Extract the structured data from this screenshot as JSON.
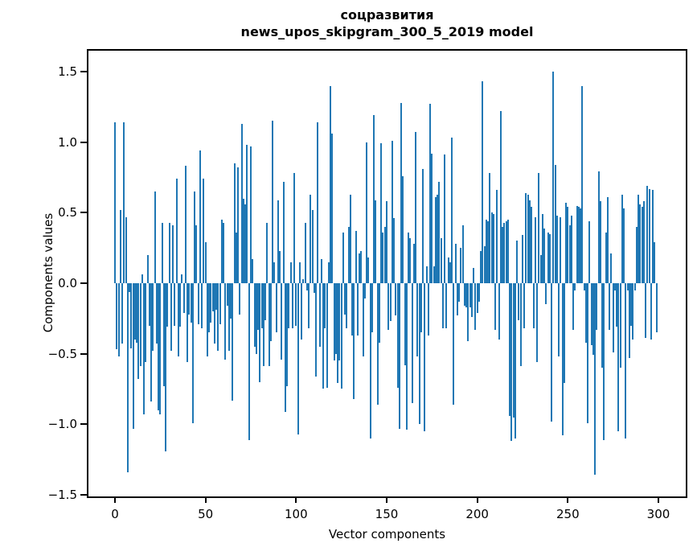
{
  "chart_data": {
    "type": "bar",
    "title_line1": "соцразвития",
    "title_line2": "news_upos_skipgram_300_5_2019 model",
    "xlabel": "Vector components",
    "ylabel": "Components values",
    "x_ticks": [
      0,
      50,
      100,
      150,
      200,
      250,
      300
    ],
    "x_tick_labels": [
      "0",
      "50",
      "100",
      "150",
      "200",
      "250",
      "300"
    ],
    "y_ticks": [
      1.5,
      1.0,
      0.5,
      0.0,
      -0.5,
      -1.0,
      -1.5
    ],
    "y_tick_labels": [
      "1.5",
      "1.0",
      "0.5",
      "0.0",
      "−0.5",
      "−1.0",
      "−1.5"
    ],
    "xlim": [
      -15.7,
      315.7
    ],
    "ylim": [
      -1.51,
      1.65
    ],
    "grid": false,
    "legend": false,
    "bar_color": "#1f77b4",
    "n_components": 300,
    "x_start_index": 0,
    "values": [
      1.14,
      -0.47,
      -0.52,
      0.52,
      -0.43,
      1.14,
      0.47,
      -1.34,
      -0.06,
      -0.46,
      -1.03,
      -0.4,
      -0.42,
      -0.68,
      -0.59,
      0.06,
      -0.93,
      -0.56,
      0.2,
      -0.3,
      -0.84,
      -0.48,
      0.65,
      -0.43,
      -0.9,
      -0.93,
      0.43,
      -0.73,
      -1.19,
      -0.31,
      0.43,
      -0.48,
      0.41,
      -0.3,
      0.74,
      -0.52,
      -0.31,
      0.06,
      -0.21,
      0.83,
      -0.56,
      -0.22,
      -0.28,
      -0.99,
      0.65,
      0.41,
      -0.29,
      0.94,
      -0.32,
      0.74,
      0.29,
      -0.52,
      -0.35,
      -0.28,
      -0.2,
      -0.43,
      -0.19,
      -0.48,
      -0.29,
      0.45,
      0.43,
      -0.54,
      -0.16,
      -0.48,
      -0.25,
      -0.83,
      0.85,
      0.36,
      0.82,
      -0.22,
      1.13,
      0.6,
      0.56,
      0.98,
      -1.11,
      0.97,
      0.17,
      -0.45,
      -0.5,
      -0.33,
      -0.7,
      -0.32,
      -0.59,
      -0.26,
      0.43,
      -0.59,
      -0.41,
      1.15,
      0.15,
      -0.35,
      0.59,
      0.23,
      -0.54,
      0.72,
      -0.91,
      -0.73,
      -0.32,
      0.15,
      -0.32,
      0.78,
      -0.3,
      -1.07,
      0.15,
      -0.4,
      0.03,
      0.43,
      -0.05,
      -0.32,
      0.63,
      0.52,
      -0.07,
      -0.66,
      1.14,
      -0.45,
      0.17,
      -0.75,
      -0.32,
      -0.74,
      0.15,
      1.4,
      1.06,
      -0.55,
      -0.5,
      -0.71,
      -0.55,
      -0.75,
      0.36,
      -0.22,
      -0.32,
      0.4,
      0.63,
      -0.37,
      -0.82,
      0.37,
      -0.37,
      0.21,
      0.23,
      -0.52,
      -0.11,
      1.0,
      0.18,
      -1.1,
      -0.35,
      1.19,
      0.59,
      -0.86,
      -0.42,
      0.99,
      0.36,
      0.4,
      0.58,
      -0.33,
      -0.27,
      1.01,
      0.46,
      -0.23,
      -0.74,
      -1.03,
      1.28,
      0.76,
      -0.58,
      -1.04,
      0.36,
      0.32,
      -0.85,
      0.28,
      1.07,
      -0.52,
      -1.0,
      -0.35,
      0.81,
      -1.05,
      0.12,
      -0.37,
      1.27,
      0.92,
      0.12,
      0.61,
      0.63,
      0.72,
      0.32,
      -0.32,
      0.91,
      -0.32,
      0.18,
      0.15,
      1.03,
      -0.86,
      0.28,
      -0.23,
      -0.13,
      0.25,
      0.41,
      -0.16,
      -0.17,
      -0.41,
      -0.17,
      -0.24,
      0.11,
      -0.33,
      -0.21,
      -0.13,
      0.23,
      1.43,
      0.26,
      0.45,
      0.44,
      0.78,
      0.5,
      0.49,
      -0.33,
      0.66,
      -0.4,
      1.22,
      0.4,
      0.43,
      0.44,
      0.45,
      -0.94,
      -1.12,
      -0.95,
      -1.1,
      0.3,
      -0.26,
      -0.59,
      0.34,
      -0.32,
      0.64,
      0.63,
      0.59,
      0.54,
      -0.32,
      0.47,
      -0.56,
      0.78,
      0.2,
      0.49,
      0.39,
      -0.15,
      0.36,
      0.35,
      -0.98,
      1.5,
      0.84,
      0.48,
      -0.52,
      0.47,
      -1.08,
      -0.71,
      0.57,
      0.54,
      0.41,
      0.48,
      -0.33,
      -0.05,
      0.55,
      0.54,
      0.53,
      1.4,
      -0.05,
      -0.42,
      -0.99,
      0.44,
      -0.44,
      -0.51,
      -1.36,
      -0.33,
      0.79,
      0.58,
      -0.6,
      -1.11,
      0.36,
      0.61,
      -0.33,
      0.21,
      -0.49,
      -0.05,
      -0.31,
      -1.05,
      -0.6,
      0.63,
      0.53,
      -1.1,
      -0.05,
      -0.53,
      -0.3,
      -0.4,
      -0.05,
      0.4,
      0.63,
      0.56,
      0.54,
      0.58,
      -0.39,
      0.69,
      0.67,
      -0.4,
      0.66,
      0.29,
      -0.35
    ]
  }
}
